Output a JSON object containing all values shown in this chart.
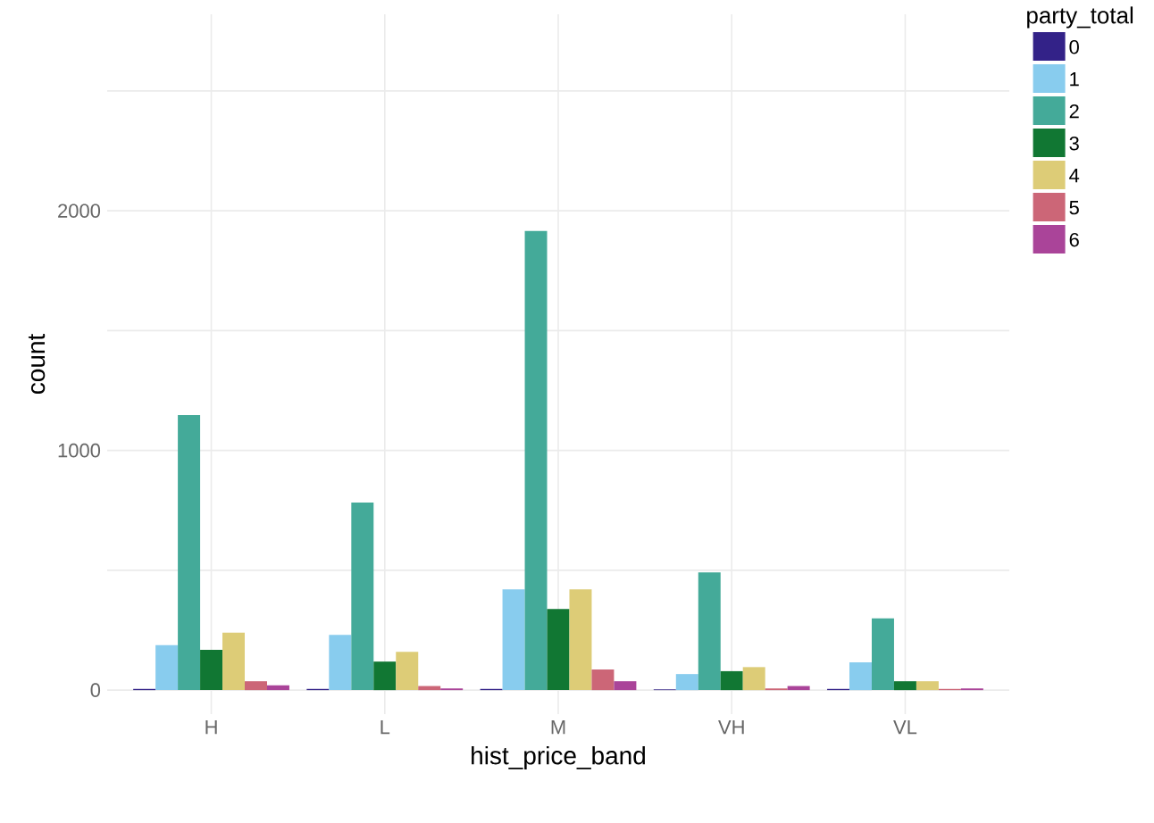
{
  "chart_data": {
    "type": "bar",
    "xlabel": "hist_price_band",
    "ylabel": "count",
    "legend_title": "party_total",
    "categories": [
      "H",
      "L",
      "M",
      "VH",
      "VL"
    ],
    "series": [
      {
        "name": "0",
        "color": "#332288",
        "values": [
          5,
          5,
          5,
          3,
          5
        ]
      },
      {
        "name": "1",
        "color": "#88ccee",
        "values": [
          188,
          230,
          420,
          67,
          116
        ]
      },
      {
        "name": "2",
        "color": "#44aa99",
        "values": [
          1148,
          783,
          1916,
          491,
          299
        ]
      },
      {
        "name": "3",
        "color": "#117733",
        "values": [
          168,
          119,
          338,
          79,
          37
        ]
      },
      {
        "name": "4",
        "color": "#ddcc77",
        "values": [
          240,
          160,
          420,
          96,
          37
        ]
      },
      {
        "name": "5",
        "color": "#cc6677",
        "values": [
          37,
          17,
          86,
          7,
          5
        ]
      },
      {
        "name": "6",
        "color": "#aa4499",
        "values": [
          20,
          7,
          37,
          17,
          7
        ]
      }
    ],
    "ylim": [
      -100,
      2820
    ],
    "yticks": [
      0,
      {
        "value": 500,
        "label": null
      },
      1000,
      {
        "value": 1500,
        "label": null
      },
      2000,
      {
        "value": 2500,
        "label": null
      }
    ],
    "grid": true,
    "legend": "right"
  }
}
